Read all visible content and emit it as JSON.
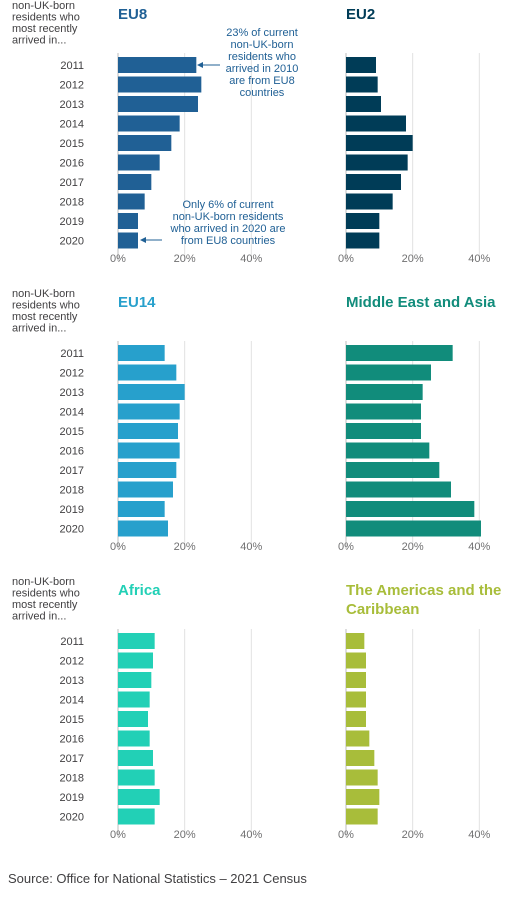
{
  "row_header": [
    "non-UK-born",
    "residents who",
    "most recently",
    "arrived in..."
  ],
  "source": "Source: Office for National Statistics – 2021 Census",
  "annotations": [
    {
      "text": [
        "23% of current",
        "non-UK-born",
        "residents who",
        "arrived in 2010",
        "are from EU8",
        "countries"
      ],
      "color": "#206095"
    },
    {
      "text": [
        "Only 6% of current",
        "non-UK-born residents",
        "who arrived in 2020 are",
        "from EU8 countries"
      ],
      "color": "#206095"
    }
  ],
  "chart_data": [
    {
      "type": "bar",
      "orientation": "horizontal",
      "title": "EU8",
      "title_lines": [
        "EU8"
      ],
      "color": "#206095",
      "categories": [
        "2011",
        "2012",
        "2013",
        "2014",
        "2015",
        "2016",
        "2017",
        "2018",
        "2019",
        "2020"
      ],
      "values": [
        23.5,
        25,
        24,
        18.5,
        16,
        12.5,
        10,
        8,
        6,
        6
      ],
      "xticks": [
        "0%",
        "20%",
        "40%"
      ],
      "xlim": [
        0,
        40
      ],
      "grid": true
    },
    {
      "type": "bar",
      "orientation": "horizontal",
      "title": "EU2",
      "title_lines": [
        "EU2"
      ],
      "color": "#003c57",
      "categories": [
        "2011",
        "2012",
        "2013",
        "2014",
        "2015",
        "2016",
        "2017",
        "2018",
        "2019",
        "2020"
      ],
      "values": [
        9,
        9.5,
        10.5,
        18,
        20,
        18.5,
        16.5,
        14,
        10,
        10
      ],
      "xticks": [
        "0%",
        "20%",
        "40%"
      ],
      "xlim": [
        0,
        40
      ],
      "grid": true
    },
    {
      "type": "bar",
      "orientation": "horizontal",
      "title": "EU14",
      "title_lines": [
        "EU14"
      ],
      "color": "#27a0cc",
      "categories": [
        "2011",
        "2012",
        "2013",
        "2014",
        "2015",
        "2016",
        "2017",
        "2018",
        "2019",
        "2020"
      ],
      "values": [
        14,
        17.5,
        20,
        18.5,
        18,
        18.5,
        17.5,
        16.5,
        14,
        15
      ],
      "xticks": [
        "0%",
        "20%",
        "40%"
      ],
      "xlim": [
        0,
        40
      ],
      "grid": true
    },
    {
      "type": "bar",
      "orientation": "horizontal",
      "title": "Middle East and Asia",
      "title_lines": [
        "Middle East and Asia"
      ],
      "color": "#118c7b",
      "categories": [
        "2011",
        "2012",
        "2013",
        "2014",
        "2015",
        "2016",
        "2017",
        "2018",
        "2019",
        "2020"
      ],
      "values": [
        32,
        25.5,
        23,
        22.5,
        22.5,
        25,
        28,
        31.5,
        38.5,
        40.5
      ],
      "xticks": [
        "0%",
        "20%",
        "40%"
      ],
      "xlim": [
        0,
        40
      ],
      "grid": true
    },
    {
      "type": "bar",
      "orientation": "horizontal",
      "title": "Africa",
      "title_lines": [
        "Africa"
      ],
      "color": "#22d0b6",
      "categories": [
        "2011",
        "2012",
        "2013",
        "2014",
        "2015",
        "2016",
        "2017",
        "2018",
        "2019",
        "2020"
      ],
      "values": [
        11,
        10.5,
        10,
        9.5,
        9,
        9.5,
        10.5,
        11,
        12.5,
        11
      ],
      "xticks": [
        "0%",
        "20%",
        "40%"
      ],
      "xlim": [
        0,
        40
      ],
      "grid": true
    },
    {
      "type": "bar",
      "orientation": "horizontal",
      "title": "The Americas and the Caribbean",
      "title_lines": [
        "The Americas and the",
        "Caribbean"
      ],
      "color": "#a8bd3a",
      "categories": [
        "2011",
        "2012",
        "2013",
        "2014",
        "2015",
        "2016",
        "2017",
        "2018",
        "2019",
        "2020"
      ],
      "values": [
        5.5,
        6,
        6,
        6,
        6,
        7,
        8.5,
        9.5,
        10,
        9.5
      ],
      "xticks": [
        "0%",
        "20%",
        "40%"
      ],
      "xlim": [
        0,
        40
      ],
      "grid": true
    }
  ]
}
